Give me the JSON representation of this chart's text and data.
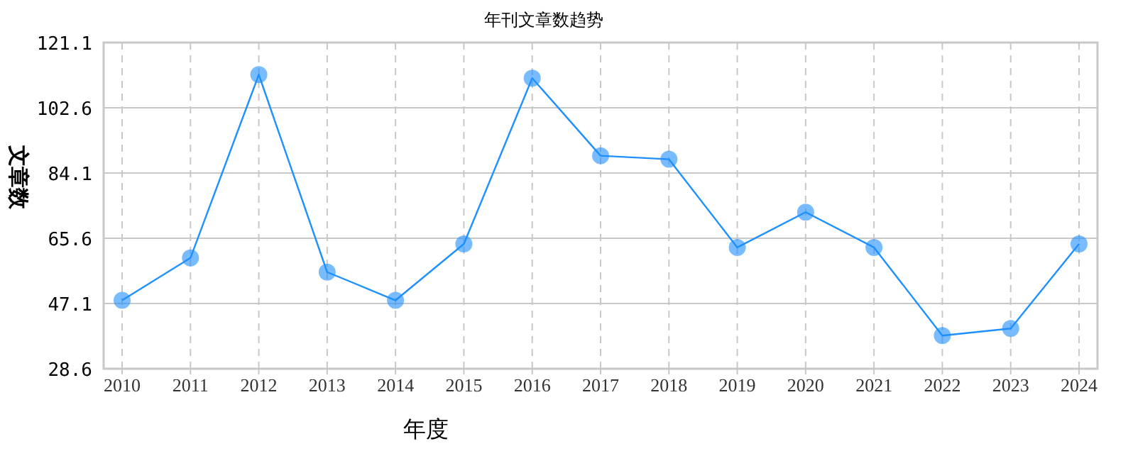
{
  "chart_data": {
    "type": "line",
    "title": "年刊文章数趋势",
    "xlabel": "年度",
    "ylabel": "文章数",
    "categories": [
      "2010",
      "2011",
      "2012",
      "2013",
      "2014",
      "2015",
      "2016",
      "2017",
      "2018",
      "2019",
      "2020",
      "2021",
      "2022",
      "2023",
      "2024"
    ],
    "series": [
      {
        "color": "#1e90ff",
        "values": [
          48,
          60,
          112,
          56,
          48,
          64,
          111,
          89,
          88,
          63,
          73,
          63,
          38,
          40,
          64
        ]
      }
    ],
    "ylim": [
      28.6,
      121.1
    ],
    "yticks": [
      28.6,
      47.1,
      65.6,
      84.1,
      102.6,
      121.1
    ],
    "grid": true,
    "marker": "circle",
    "line_style": "solid"
  }
}
